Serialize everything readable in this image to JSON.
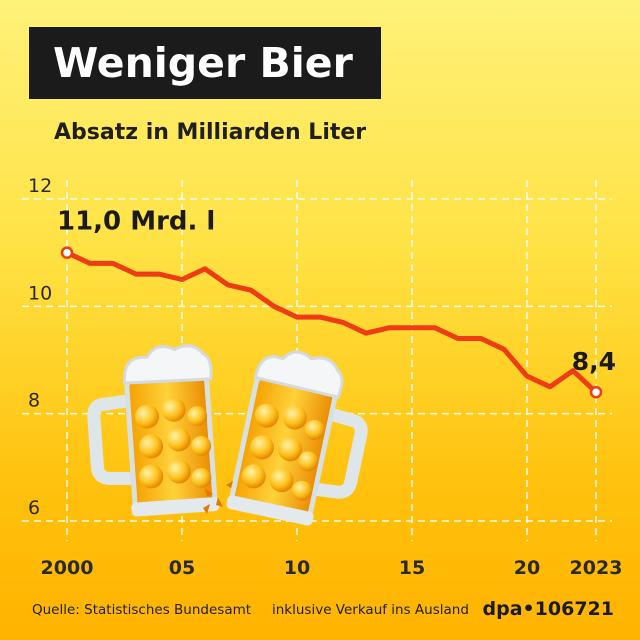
{
  "header": {
    "title": "Weniger Bier",
    "subtitle": "Absatz in Milliarden Liter"
  },
  "chart_data": {
    "type": "line",
    "title": "Weniger Bier",
    "subtitle": "Absatz in Milliarden Liter",
    "xlabel": "",
    "ylabel": "",
    "x": [
      2000,
      2001,
      2002,
      2003,
      2004,
      2005,
      2006,
      2007,
      2008,
      2009,
      2010,
      2011,
      2012,
      2013,
      2014,
      2015,
      2016,
      2017,
      2018,
      2019,
      2020,
      2021,
      2022,
      2023
    ],
    "series": [
      {
        "values": [
          11.0,
          10.8,
          10.8,
          10.6,
          10.6,
          10.5,
          10.7,
          10.4,
          10.3,
          10.0,
          9.8,
          9.8,
          9.7,
          9.5,
          9.6,
          9.6,
          9.6,
          9.4,
          9.4,
          9.2,
          8.7,
          8.5,
          8.8,
          8.4
        ]
      }
    ],
    "ylim": [
      6,
      12
    ],
    "yticks": [
      "6",
      "8",
      "10",
      "12"
    ],
    "xticks": [
      {
        "x": 2000,
        "label": "2000"
      },
      {
        "x": 2005,
        "label": "05"
      },
      {
        "x": 2010,
        "label": "10"
      },
      {
        "x": 2015,
        "label": "15"
      },
      {
        "x": 2020,
        "label": "20"
      },
      {
        "x": 2023,
        "label": "2023"
      }
    ],
    "annotations": [
      {
        "x": 2000,
        "text": "11,0 Mrd. l"
      },
      {
        "x": 2023,
        "text": "8,4"
      }
    ],
    "grid": true,
    "line_color": "#ee3c14"
  },
  "footer": {
    "source": "Quelle: Statistisches Bundesamt",
    "note": "inklusive Verkauf ins Ausland",
    "brand": "dpa•106721"
  }
}
